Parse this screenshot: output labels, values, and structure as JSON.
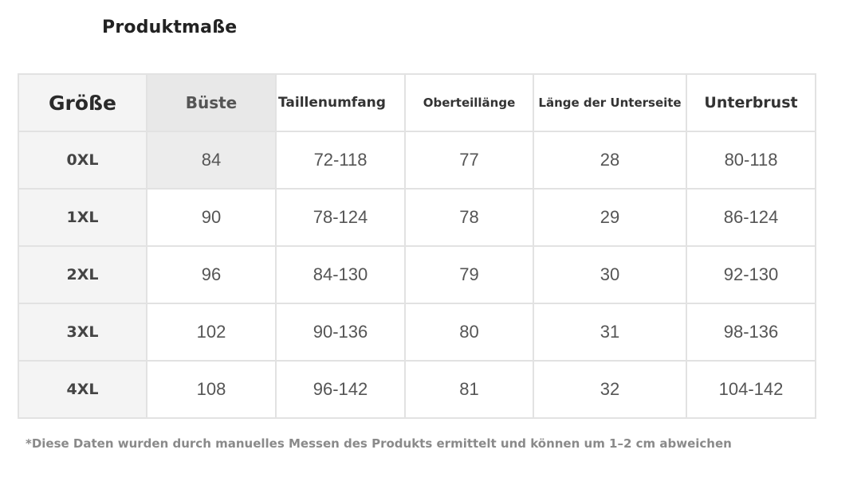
{
  "title": "Produktmaße",
  "table": {
    "headers": [
      "Größe",
      "Büste",
      "Taillenumfang",
      "Oberteillänge",
      "Länge der Unterseite",
      "Unterbrust"
    ],
    "rows": [
      [
        "0XL",
        "84",
        "72-118",
        "77",
        "28",
        "80-118"
      ],
      [
        "1XL",
        "90",
        "78-124",
        "78",
        "29",
        "86-124"
      ],
      [
        "2XL",
        "96",
        "84-130",
        "79",
        "30",
        "92-130"
      ],
      [
        "3XL",
        "102",
        "90-136",
        "80",
        "31",
        "98-136"
      ],
      [
        "4XL",
        "108",
        "96-142",
        "81",
        "32",
        "104-142"
      ]
    ]
  },
  "footnote": "*Diese Daten wurden durch manuelles Messen des Produkts ermittelt und können um 1–2 cm abweichen"
}
